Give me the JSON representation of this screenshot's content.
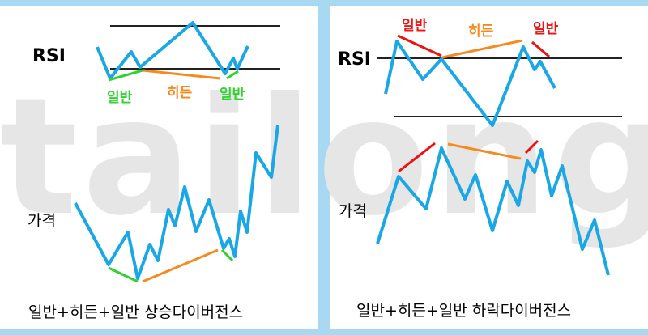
{
  "watermark": "tailong",
  "colors": {
    "line": "#1aa7e6",
    "regular": "#2fd22f",
    "hidden": "#f58a1f",
    "regular_bearish": "#ee1111",
    "axis": "#222222",
    "frame": "#a9d8f2"
  },
  "left_panel": {
    "rsi_label": "RSI",
    "price_label": "가격",
    "regular_label_1": "일반",
    "hidden_label": "히든",
    "regular_label_2": "일반",
    "caption": "일반+히든+일반 상승다이버전스"
  },
  "right_panel": {
    "rsi_label": "RSI",
    "price_label": "가격",
    "regular_label_1": "일반",
    "hidden_label": "히든",
    "regular_label_2": "일반",
    "caption": "일반+히든+일반 하락다이버전스"
  }
}
